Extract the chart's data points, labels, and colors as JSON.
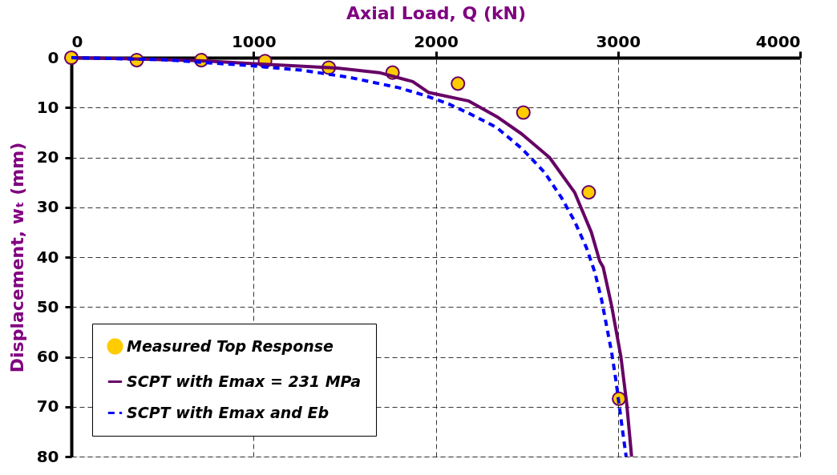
{
  "chart_data": {
    "type": "line",
    "xlabel": "Axial Load, Q (kN)",
    "ylabel": "Displacement, wₜ (mm)",
    "xlim": [
      0,
      4000
    ],
    "xticks": [
      0,
      1000,
      2000,
      3000,
      4000
    ],
    "ylim": [
      80,
      0
    ],
    "yticks": [
      0,
      10,
      20,
      30,
      40,
      50,
      60,
      70,
      80
    ],
    "grid": true,
    "legend": "bottom left",
    "series": [
      {
        "name": "Measured Top Response",
        "type": "scatter",
        "marker": "circle",
        "color": "#ffcc00",
        "x": [
          0,
          359,
          713,
          1063,
          1413,
          1763,
          2122,
          2481,
          2840,
          3006
        ],
        "values": [
          0,
          0.5,
          0.5,
          0.7,
          2,
          3,
          5.2,
          11,
          27,
          68.4
        ]
      },
      {
        "name": "SCPT with Emax = 231 MPa",
        "line_style": "solid",
        "color": "#660066",
        "x": [
          0,
          300,
          700,
          1000,
          1460,
          1690,
          1874,
          1962,
          2182,
          2334,
          2472,
          2624,
          2762,
          2854,
          2900,
          2919,
          2965,
          3016,
          3048,
          3075
        ],
        "values": [
          0,
          0.2,
          0.6,
          1.2,
          2.1,
          3,
          4.8,
          7,
          8.7,
          11.8,
          15.3,
          20,
          27,
          35,
          40.8,
          42,
          49.7,
          59.9,
          69.3,
          80
        ]
      },
      {
        "name": "SCPT with Emax and Eb",
        "line_style": "dashed",
        "color": "#0000ff",
        "x": [
          0,
          500,
          985,
          1261,
          1519,
          1795,
          1934,
          2072,
          2196,
          2334,
          2472,
          2597,
          2689,
          2762,
          2827,
          2873,
          2910,
          2965,
          2988,
          3025,
          3045
        ],
        "values": [
          0,
          0.4,
          1.6,
          2.5,
          3.9,
          6,
          7.5,
          9.3,
          11.4,
          14,
          18.2,
          23,
          28,
          32.8,
          38.1,
          43,
          48.5,
          59,
          64.5,
          74.7,
          80
        ]
      }
    ]
  }
}
